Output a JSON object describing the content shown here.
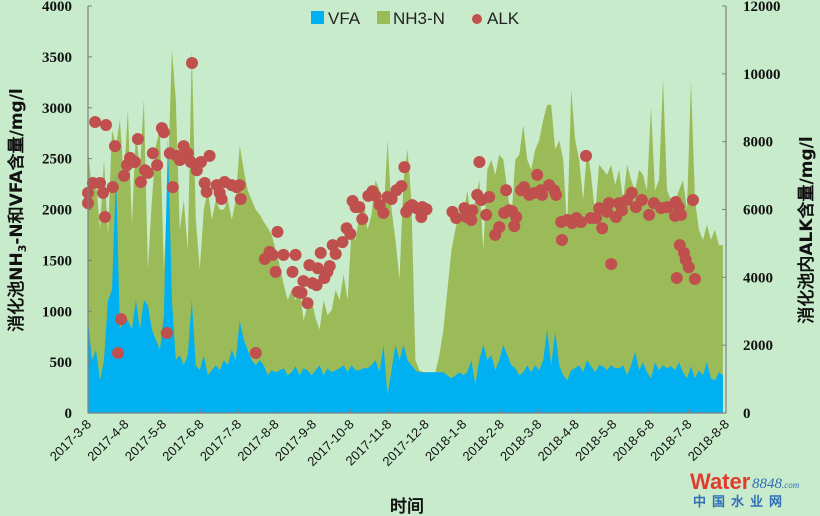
{
  "chart_data": {
    "type": "area+scatter",
    "title": "",
    "xlabel": "时间",
    "ylabel_left_parts": [
      "消化池NH",
      "3",
      "-N和VFA含量/mg/l"
    ],
    "ylabel_right": "消化池内ALK含量/mg/l",
    "x_unit": "months since 2017-3-8",
    "xlim": [
      0,
      17
    ],
    "ylim_left": [
      0,
      4000
    ],
    "ylim_right": [
      0,
      12000
    ],
    "y_ticks_left": [
      "0",
      "500",
      "1000",
      "1500",
      "2000",
      "2500",
      "3000",
      "3500",
      "4000"
    ],
    "y_ticks_right": [
      "0",
      "2000",
      "4000",
      "6000",
      "8000",
      "10000",
      "12000"
    ],
    "x_ticks": [
      "2017-3-8",
      "2017-4-8",
      "2017-5-8",
      "2017-6-8",
      "2017-7-8",
      "2017-8-8",
      "2017-9-8",
      "2017-10-8",
      "2017-11-8",
      "2017-12-8",
      "2018-1-8",
      "2018-2-8",
      "2018-3-8",
      "2018-4-8",
      "2018-5-8",
      "2018-6-8",
      "2018-7-8",
      "2018-8-8"
    ],
    "grid": false,
    "legend_position": "top-center",
    "legend": [
      "VFA",
      "NH3-N",
      "ALK"
    ],
    "colors": {
      "VFA": "#00b0f0",
      "NH3-N": "#9bbb59",
      "ALK": "#c0504d",
      "background": "#c8ebcc"
    },
    "area_x_start": 0,
    "area_x_step": 0.1064,
    "series": [
      {
        "name": "NH3-N",
        "axis": "left",
        "kind": "area",
        "values": [
          2590,
          2190,
          2290,
          1800,
          2490,
          1750,
          2780,
          2630,
          2880,
          2290,
          2980,
          1850,
          2780,
          2390,
          3080,
          1410,
          2090,
          2630,
          2780,
          1410,
          2290,
          3570,
          3080,
          1800,
          2090,
          1600,
          3570,
          1900,
          1410,
          2000,
          2190,
          1900,
          2090,
          2000,
          2000,
          2090,
          1900,
          2090,
          2630,
          2390,
          2190,
          2090,
          2000,
          1950,
          1880,
          1820,
          1750,
          1600,
          1450,
          1260,
          1110,
          1210,
          1110,
          1210,
          910,
          1060,
          1110,
          930,
          820,
          1110,
          960,
          1010,
          1210,
          1110,
          1360,
          1110,
          1800,
          1700,
          1950,
          2090,
          1800,
          1950,
          2290,
          2190,
          1900,
          2680,
          2000,
          1700,
          1310,
          2290,
          2590,
          2090,
          520,
          420,
          400,
          400,
          400,
          400,
          570,
          820,
          1210,
          1600,
          1800,
          2000,
          1950,
          2190,
          1900,
          2090,
          2290,
          1600,
          2390,
          2490,
          2340,
          2540,
          2490,
          2190,
          1900,
          2490,
          2540,
          2830,
          2490,
          2390,
          2590,
          2680,
          2880,
          3030,
          3030,
          2590,
          2680,
          2490,
          1800,
          3180,
          2680,
          2490,
          2090,
          2590,
          2340,
          1950,
          2440,
          2390,
          2340,
          2440,
          2240,
          2390,
          2090,
          2440,
          2290,
          2190,
          2390,
          2340,
          2190,
          3010,
          2190,
          2290,
          3290,
          2190,
          2090,
          2090,
          2190,
          2290,
          2000,
          3270,
          2090,
          1800,
          1700,
          1850,
          1700,
          1800,
          1650,
          1650
        ]
      },
      {
        "name": "VFA",
        "axis": "left",
        "kind": "area",
        "values": [
          910,
          520,
          620,
          320,
          520,
          1110,
          1210,
          2360,
          820,
          960,
          910,
          820,
          1110,
          820,
          1110,
          1060,
          820,
          720,
          620,
          960,
          2700,
          1110,
          520,
          570,
          470,
          570,
          1110,
          470,
          420,
          570,
          370,
          420,
          470,
          420,
          520,
          470,
          620,
          520,
          910,
          720,
          620,
          520,
          470,
          520,
          470,
          370,
          420,
          400,
          420,
          440,
          370,
          400,
          460,
          370,
          440,
          420,
          370,
          420,
          470,
          370,
          440,
          400,
          420,
          440,
          470,
          400,
          470,
          420,
          420,
          440,
          440,
          470,
          520,
          400,
          670,
          180,
          420,
          670,
          520,
          670,
          520,
          470,
          420,
          400,
          400,
          400,
          400,
          400,
          400,
          400,
          370,
          340,
          370,
          400,
          370,
          400,
          520,
          280,
          520,
          670,
          520,
          570,
          420,
          520,
          670,
          570,
          470,
          440,
          370,
          400,
          470,
          400,
          470,
          420,
          520,
          820,
          470,
          800,
          470,
          370,
          320,
          420,
          440,
          470,
          400,
          520,
          460,
          400,
          470,
          460,
          420,
          470,
          440,
          440,
          470,
          370,
          470,
          600,
          420,
          500,
          400,
          340,
          500,
          420,
          470,
          440,
          460,
          420,
          500,
          400,
          340,
          460,
          340,
          420,
          370,
          500,
          340,
          320,
          400,
          370
        ]
      },
      {
        "name": "ALK",
        "axis": "right",
        "kind": "scatter",
        "points": [
          [
            0,
            6490
          ],
          [
            0,
            6190
          ],
          [
            0.13,
            6780
          ],
          [
            0.19,
            8580
          ],
          [
            0.32,
            6780
          ],
          [
            0.4,
            6490
          ],
          [
            0.45,
            5780
          ],
          [
            0.48,
            8490
          ],
          [
            0.66,
            6660
          ],
          [
            0.72,
            7870
          ],
          [
            0.8,
            1770
          ],
          [
            0.88,
            2770
          ],
          [
            0.96,
            6990
          ],
          [
            1.04,
            7310
          ],
          [
            1.12,
            7520
          ],
          [
            1.25,
            7400
          ],
          [
            1.33,
            8080
          ],
          [
            1.41,
            6810
          ],
          [
            1.52,
            7160
          ],
          [
            1.6,
            7080
          ],
          [
            1.73,
            7660
          ],
          [
            1.84,
            7310
          ],
          [
            1.97,
            8400
          ],
          [
            2.02,
            8280
          ],
          [
            2.1,
            2360
          ],
          [
            2.18,
            7660
          ],
          [
            2.26,
            6660
          ],
          [
            2.37,
            7580
          ],
          [
            2.45,
            7460
          ],
          [
            2.55,
            7870
          ],
          [
            2.66,
            7660
          ],
          [
            2.77,
            10320
          ],
          [
            2.74,
            7400
          ],
          [
            2.9,
            7160
          ],
          [
            3.01,
            7400
          ],
          [
            3.11,
            6780
          ],
          [
            3.16,
            6520
          ],
          [
            3.24,
            7580
          ],
          [
            3.43,
            6720
          ],
          [
            3.51,
            6490
          ],
          [
            3.56,
            6310
          ],
          [
            3.64,
            6810
          ],
          [
            3.83,
            6720
          ],
          [
            3.96,
            6660
          ],
          [
            4.04,
            6720
          ],
          [
            4.07,
            6310
          ],
          [
            4.47,
            1770
          ],
          [
            5.05,
            5340
          ],
          [
            4.71,
            4540
          ],
          [
            4.84,
            4750
          ],
          [
            4.92,
            4660
          ],
          [
            5.0,
            4160
          ],
          [
            5.21,
            4660
          ],
          [
            5.45,
            4160
          ],
          [
            5.53,
            4660
          ],
          [
            5.74,
            3890
          ],
          [
            5.59,
            3570
          ],
          [
            5.69,
            3540
          ],
          [
            5.85,
            3240
          ],
          [
            5.9,
            4360
          ],
          [
            5.98,
            3830
          ],
          [
            6.09,
            3770
          ],
          [
            6.2,
            4720
          ],
          [
            6.12,
            4270
          ],
          [
            6.3,
            3980
          ],
          [
            6.38,
            4160
          ],
          [
            6.44,
            4330
          ],
          [
            6.52,
            4950
          ],
          [
            6.6,
            4690
          ],
          [
            6.78,
            5040
          ],
          [
            6.89,
            5450
          ],
          [
            6.99,
            5280
          ],
          [
            7.05,
            6250
          ],
          [
            7.13,
            6070
          ],
          [
            7.23,
            6070
          ],
          [
            7.31,
            5720
          ],
          [
            7.47,
            6400
          ],
          [
            7.58,
            6540
          ],
          [
            7.66,
            6400
          ],
          [
            7.77,
            6130
          ],
          [
            7.87,
            5900
          ],
          [
            7.98,
            6370
          ],
          [
            8.09,
            6310
          ],
          [
            8.22,
            6570
          ],
          [
            8.35,
            6690
          ],
          [
            8.43,
            7250
          ],
          [
            8.48,
            5930
          ],
          [
            8.56,
            6070
          ],
          [
            8.64,
            6130
          ],
          [
            8.75,
            6040
          ],
          [
            8.88,
            5780
          ],
          [
            8.91,
            6070
          ],
          [
            9.02,
            6010
          ],
          [
            9.71,
            5930
          ],
          [
            9.81,
            5750
          ],
          [
            10.03,
            6040
          ],
          [
            10.08,
            5780
          ],
          [
            10.21,
            5690
          ],
          [
            10.24,
            5980
          ],
          [
            10.37,
            6430
          ],
          [
            10.43,
            7400
          ],
          [
            10.48,
            6280
          ],
          [
            10.61,
            5840
          ],
          [
            10.69,
            6370
          ],
          [
            10.85,
            5250
          ],
          [
            10.96,
            5480
          ],
          [
            11.09,
            5900
          ],
          [
            11.14,
            6570
          ],
          [
            11.22,
            5980
          ],
          [
            11.3,
            5950
          ],
          [
            11.36,
            5510
          ],
          [
            11.41,
            5780
          ],
          [
            11.54,
            6570
          ],
          [
            11.62,
            6660
          ],
          [
            11.76,
            6430
          ],
          [
            11.89,
            6490
          ],
          [
            11.97,
            7020
          ],
          [
            12.07,
            6570
          ],
          [
            12.1,
            6430
          ],
          [
            12.29,
            6720
          ],
          [
            12.42,
            6570
          ],
          [
            12.47,
            6430
          ],
          [
            12.61,
            5630
          ],
          [
            12.63,
            5100
          ],
          [
            12.77,
            5690
          ],
          [
            12.9,
            5600
          ],
          [
            13.01,
            5750
          ],
          [
            13.14,
            5630
          ],
          [
            13.27,
            7580
          ],
          [
            13.4,
            5750
          ],
          [
            13.54,
            5750
          ],
          [
            13.62,
            6040
          ],
          [
            13.7,
            5450
          ],
          [
            13.83,
            5930
          ],
          [
            13.88,
            6190
          ],
          [
            13.94,
            4390
          ],
          [
            14.07,
            5780
          ],
          [
            14.15,
            6190
          ],
          [
            14.23,
            5980
          ],
          [
            14.36,
            6280
          ],
          [
            14.49,
            6490
          ],
          [
            14.6,
            6070
          ],
          [
            14.76,
            6280
          ],
          [
            14.95,
            5840
          ],
          [
            15.08,
            6190
          ],
          [
            15.27,
            6040
          ],
          [
            15.43,
            6070
          ],
          [
            15.64,
            5810
          ],
          [
            15.66,
            6220
          ],
          [
            15.8,
            5840
          ],
          [
            15.74,
            6070
          ],
          [
            16.12,
            6280
          ],
          [
            15.69,
            3980
          ],
          [
            15.77,
            4950
          ],
          [
            15.88,
            4720
          ],
          [
            15.93,
            4510
          ],
          [
            16.01,
            4300
          ],
          [
            16.17,
            3950
          ]
        ]
      }
    ]
  },
  "watermark": {
    "brand": "Water",
    "number": "8848",
    "suffix": ".com",
    "subtitle": "中国水业网"
  }
}
